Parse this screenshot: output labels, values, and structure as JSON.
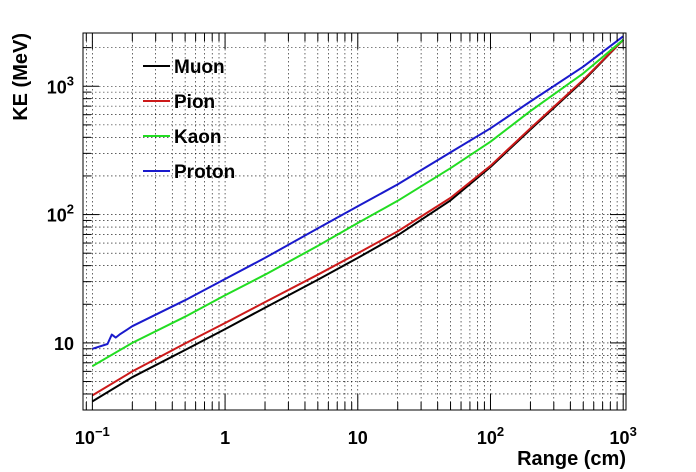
{
  "chart_data": {
    "type": "line",
    "title": "",
    "xlabel": "Range (cm)",
    "ylabel": "KE (MeV)",
    "xscale": "log",
    "yscale": "log",
    "xlim": [
      0.085,
      1050
    ],
    "ylim": [
      3.0,
      2600
    ],
    "grid": true,
    "legend_position": "top-left",
    "x_ticks": [
      {
        "value": 0.1,
        "base": "10",
        "exp": "−1"
      },
      {
        "value": 1,
        "base": "1",
        "exp": ""
      },
      {
        "value": 10,
        "base": "10",
        "exp": ""
      },
      {
        "value": 100,
        "base": "10",
        "exp": "2"
      },
      {
        "value": 1000,
        "base": "10",
        "exp": "3"
      }
    ],
    "y_ticks": [
      {
        "value": 10,
        "base": "10",
        "exp": ""
      },
      {
        "value": 100,
        "base": "10",
        "exp": "2"
      },
      {
        "value": 1000,
        "base": "10",
        "exp": "3"
      }
    ],
    "series": [
      {
        "name": "Muon",
        "color": "#000000",
        "x": [
          0.1,
          0.2,
          0.5,
          1,
          2,
          5,
          10,
          20,
          50,
          100,
          200,
          500,
          1000
        ],
        "y": [
          3.5,
          5.4,
          8.8,
          12.8,
          18.8,
          31,
          46,
          69,
          129,
          235,
          460,
          1100,
          2300
        ]
      },
      {
        "name": "Pion",
        "color": "#cc1a1a",
        "x": [
          0.1,
          0.2,
          0.5,
          1,
          2,
          5,
          10,
          20,
          50,
          100,
          200,
          500,
          1000
        ],
        "y": [
          3.9,
          6.0,
          9.9,
          14.3,
          20.8,
          34,
          50,
          74,
          135,
          240,
          470,
          1120,
          2300
        ]
      },
      {
        "name": "Kaon",
        "color": "#22dd22",
        "x": [
          0.1,
          0.2,
          0.5,
          1,
          2,
          5,
          10,
          20,
          50,
          100,
          200,
          500,
          1000
        ],
        "y": [
          6.6,
          10.0,
          16.0,
          23.5,
          34,
          57,
          86,
          128,
          230,
          370,
          640,
          1260,
          2300
        ]
      },
      {
        "name": "Proton",
        "color": "#1a1acc",
        "x": [
          0.1,
          0.13,
          0.14,
          0.15,
          0.16,
          0.2,
          0.5,
          1,
          2,
          5,
          10,
          20,
          50,
          100,
          200,
          500,
          1000
        ],
        "y": [
          9.0,
          9.8,
          11.6,
          11.0,
          11.6,
          13.5,
          21.5,
          31.5,
          46,
          78,
          116,
          172,
          305,
          470,
          760,
          1420,
          2450
        ]
      }
    ]
  }
}
